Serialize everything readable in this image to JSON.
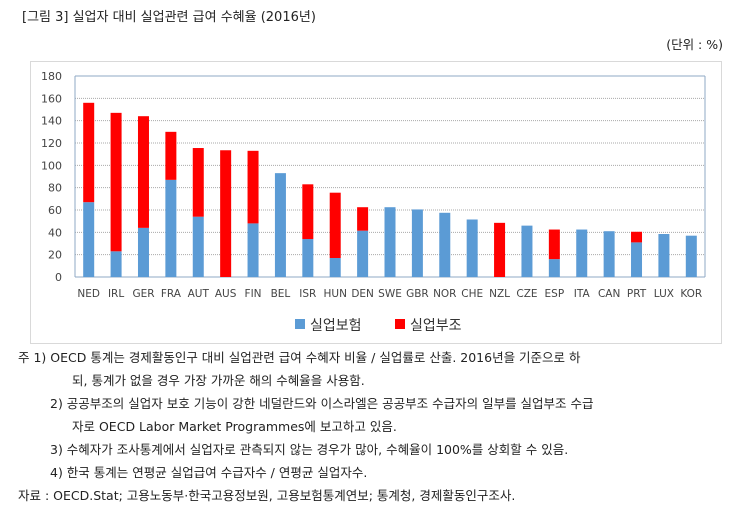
{
  "title": "[그림 3] 실업자 대비 실업관련 급여 수혜율 (2016년)",
  "unit": "(단위 : %)",
  "chart_data": {
    "type": "bar",
    "stacked": true,
    "categories": [
      "NED",
      "IRL",
      "GER",
      "FRA",
      "AUT",
      "AUS",
      "FIN",
      "BEL",
      "ISR",
      "HUN",
      "DEN",
      "SWE",
      "GBR",
      "NOR",
      "CHE",
      "NZL",
      "CZE",
      "ESP",
      "ITA",
      "CAN",
      "PRT",
      "LUX",
      "KOR"
    ],
    "series": [
      {
        "name": "실업보험",
        "color": "#5b9bd5",
        "values": [
          67,
          23,
          44,
          87,
          54,
          0,
          48,
          93,
          34,
          17,
          41.5,
          62.5,
          60.5,
          57.5,
          51.5,
          0,
          46,
          16,
          42.5,
          41,
          31,
          38.5,
          37
        ]
      },
      {
        "name": "실업부조",
        "color": "#ff0000",
        "values": [
          89,
          124,
          100,
          43,
          61.5,
          113.5,
          65,
          0,
          49,
          58.5,
          21,
          0,
          0,
          0,
          0,
          48.5,
          0,
          26.5,
          0,
          0,
          9.5,
          0,
          0
        ]
      }
    ],
    "ylim": [
      0,
      180
    ],
    "yticks": [
      0,
      20,
      40,
      60,
      80,
      100,
      120,
      140,
      160,
      180
    ],
    "grid": true,
    "legend": "bottom"
  },
  "notes": [
    "주 1) OECD 통계는 경제활동인구 대비 실업관련 급여 수혜자 비율 / 실업률로 산출. 2016년을 기준으로 하",
    "되, 통계가 없을 경우 가장 가까운 해의 수혜율을 사용함.",
    "2) 공공부조의 실업자 보호 기능이 강한 네덜란드와 이스라엘은 공공부조 수급자의 일부를 실업부조 수급",
    "자로 OECD Labor Market Programmes에 보고하고 있음.",
    "3) 수혜자가 조사통계에서 실업자로 관측되지 않는 경우가 많아, 수혜율이 100%를 상회할 수 있음.",
    "4) 한국 통계는 연평균 실업급여 수급자수 / 연평균 실업자수.",
    "자료 : OECD.Stat; 고용노동부·한국고용정보원, 고용보험통계연보; 통계청, 경제활동인구조사."
  ]
}
